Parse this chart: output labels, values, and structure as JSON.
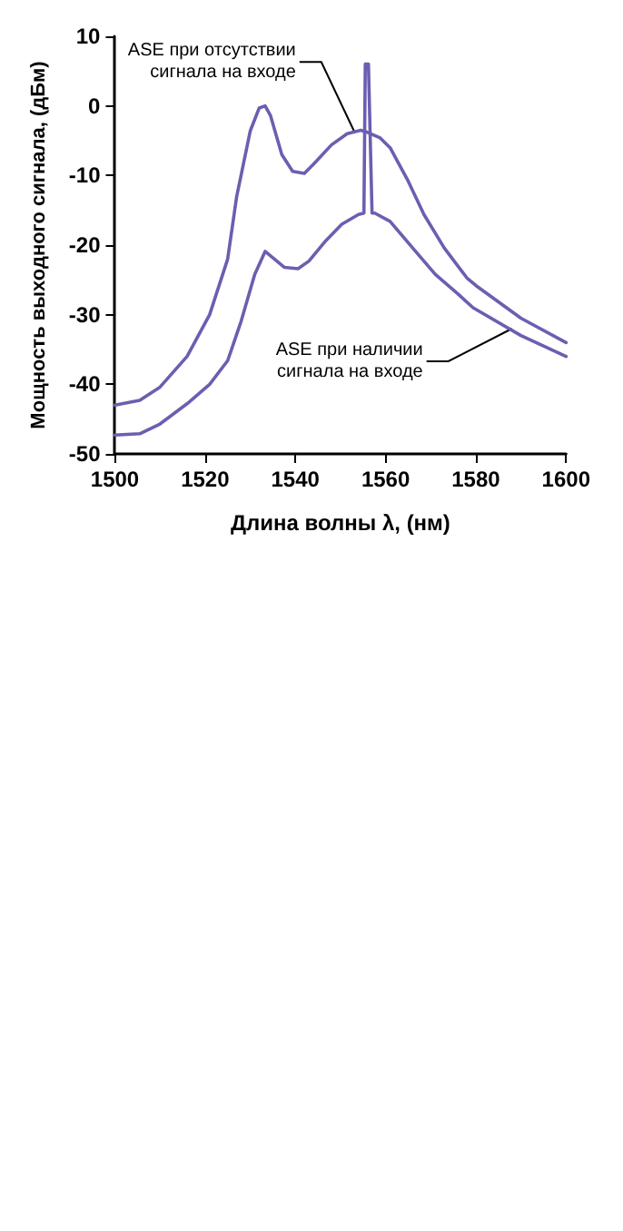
{
  "chart_data": {
    "type": "line",
    "xlabel": "Длина волны λ, (нм)",
    "ylabel": "Мощность выходного сигнала, (дБм)",
    "xlim": [
      1500,
      1600
    ],
    "xticks": [
      1500,
      1520,
      1540,
      1560,
      1580,
      1600
    ],
    "ylim": [
      -50,
      10
    ],
    "yticks": [
      -50,
      -40,
      -30,
      -20,
      -10,
      0,
      10
    ],
    "grid": false,
    "marker": "none",
    "line_style": "solid",
    "series": [
      {
        "color": "#6a5fb0",
        "x": [
          1500,
          1505.5,
          1510,
          1516,
          1521,
          1525,
          1527,
          1530,
          1532,
          1533.3,
          1534.5,
          1537,
          1539.4,
          1542,
          1544,
          1548,
          1551.5,
          1554.5,
          1556,
          1558.8,
          1561,
          1565,
          1568.5,
          1573,
          1578,
          1580,
          1590,
          1600
        ],
        "values": [
          -43,
          -42.3,
          -40.4,
          -36,
          -30,
          -22,
          -13,
          -3.6,
          -0.3,
          0,
          -1.4,
          -7,
          -9.4,
          -9.7,
          -8.4,
          -5.6,
          -4,
          -3.5,
          -3.8,
          -4.6,
          -6,
          -10.8,
          -15.6,
          -20.4,
          -24.7,
          -25.8,
          -30.5,
          -34
        ]
      },
      {
        "color": "#6a5fb0",
        "x": [
          1500,
          1505.5,
          1510,
          1516,
          1521,
          1525,
          1528,
          1531,
          1533.3,
          1535,
          1537.6,
          1540.6,
          1543,
          1546.7,
          1550.3,
          1554,
          1555.2,
          1555.5,
          1556.2,
          1557,
          1557.6,
          1561,
          1566,
          1571,
          1576,
          1579.4,
          1590,
          1600
        ],
        "values": [
          -47.3,
          -47.1,
          -45.7,
          -42.8,
          -40,
          -36.6,
          -30.9,
          -24.2,
          -20.9,
          -21.8,
          -23.2,
          -23.4,
          -22.3,
          -19.4,
          -17,
          -15.6,
          -15.4,
          6,
          6,
          -15.4,
          -15.4,
          -16.6,
          -20.4,
          -24.2,
          -27,
          -29,
          -33,
          -36
        ]
      }
    ],
    "annotations": [
      {
        "text": "ASE при отсутствии сигнала на входе",
        "x": 1553,
        "y": -3.6
      },
      {
        "text": "ASE при наличии сигнала на входе",
        "x": 1588,
        "y": -32
      }
    ]
  }
}
